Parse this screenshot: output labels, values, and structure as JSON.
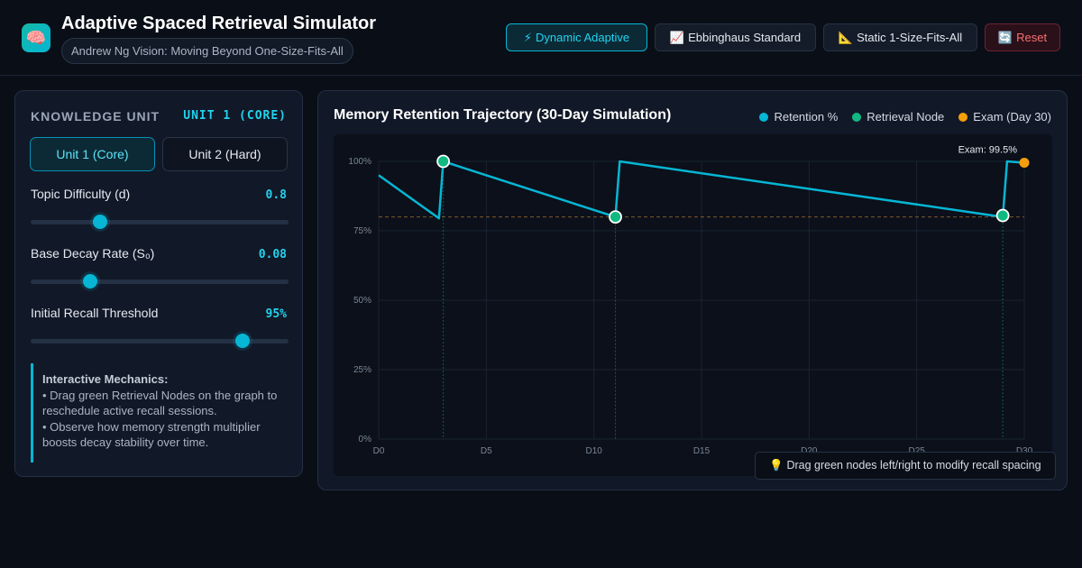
{
  "header": {
    "logo_icon": "brain-icon",
    "title": "Adaptive Spaced Retrieval Simulator",
    "subtitle": "Andrew Ng Vision: Moving Beyond One-Size-Fits-All",
    "modes": [
      {
        "icon": "⚡",
        "icon_name": "lightning-icon",
        "label": "Dynamic Adaptive",
        "active": true
      },
      {
        "icon": "📈",
        "icon_name": "chart-up-icon",
        "label": "Ebbinghaus Standard",
        "active": false
      },
      {
        "icon": "📐",
        "icon_name": "ruler-icon",
        "label": "Static 1-Size-Fits-All",
        "active": false
      },
      {
        "icon": "🔄",
        "icon_name": "refresh-icon",
        "label": "Reset",
        "active": false
      }
    ]
  },
  "sidebar": {
    "knowledge_unit_label": "KNOWLEDGE UNIT",
    "knowledge_unit_value": "UNIT 1 (CORE)",
    "units": [
      {
        "label": "Unit 1 (Core)",
        "active": true
      },
      {
        "label": "Unit 2 (Hard)",
        "active": false
      }
    ],
    "params": [
      {
        "label": "Topic Difficulty (d)",
        "value": "0.8",
        "position": 0.27
      },
      {
        "label": "Base Decay Rate (S₀)",
        "value": "0.08",
        "position": 0.23
      },
      {
        "label": "Initial Recall Threshold",
        "value": "95%",
        "position": 0.82
      }
    ],
    "mechanics": {
      "title": "Interactive Mechanics:",
      "lines": [
        "• Drag green Retrieval Nodes on the graph to reschedule active recall sessions.",
        "• Observe how memory strength multiplier boosts decay stability over time."
      ]
    }
  },
  "chart": {
    "title": "Memory Retention Trajectory (30-Day Simulation)",
    "legend": [
      {
        "label": "Retention %",
        "color": "#06b6d4"
      },
      {
        "label": "Retrieval Node",
        "color": "#10b981"
      },
      {
        "label": "Exam (Day 30)",
        "color": "#f59e0b"
      }
    ],
    "hint": "💡 Drag green nodes left/right to modify recall spacing",
    "hint_icon": "lightbulb-icon"
  },
  "chart_data": {
    "type": "line",
    "xlim": [
      0,
      30
    ],
    "ylim": [
      0,
      100
    ],
    "x_ticks": [
      0,
      5,
      10,
      15,
      20,
      25,
      30
    ],
    "x_tick_labels": [
      "D0",
      "D5",
      "D10",
      "D15",
      "D20",
      "D25",
      "D30"
    ],
    "y_ticks": [
      0,
      25,
      50,
      75,
      100
    ],
    "y_tick_labels": [
      "0%",
      "25%",
      "50%",
      "75%",
      "100%"
    ],
    "threshold": 80,
    "grid": true,
    "series": [
      {
        "name": "Retention %",
        "color": "#06b6d4",
        "points": [
          [
            0,
            95
          ],
          [
            2.8,
            79.5
          ],
          [
            3.0,
            100
          ],
          [
            11.0,
            80
          ],
          [
            11.2,
            100
          ],
          [
            29.0,
            80
          ],
          [
            29.2,
            100
          ],
          [
            30,
            99.5
          ]
        ]
      }
    ],
    "retrieval_nodes": [
      {
        "x": 3.0,
        "y": 100
      },
      {
        "x": 11.0,
        "y": 80
      },
      {
        "x": 29.0,
        "y": 80.5
      }
    ],
    "exam": {
      "x": 30,
      "y": 99.5,
      "label": "Exam: 99.5%"
    }
  }
}
